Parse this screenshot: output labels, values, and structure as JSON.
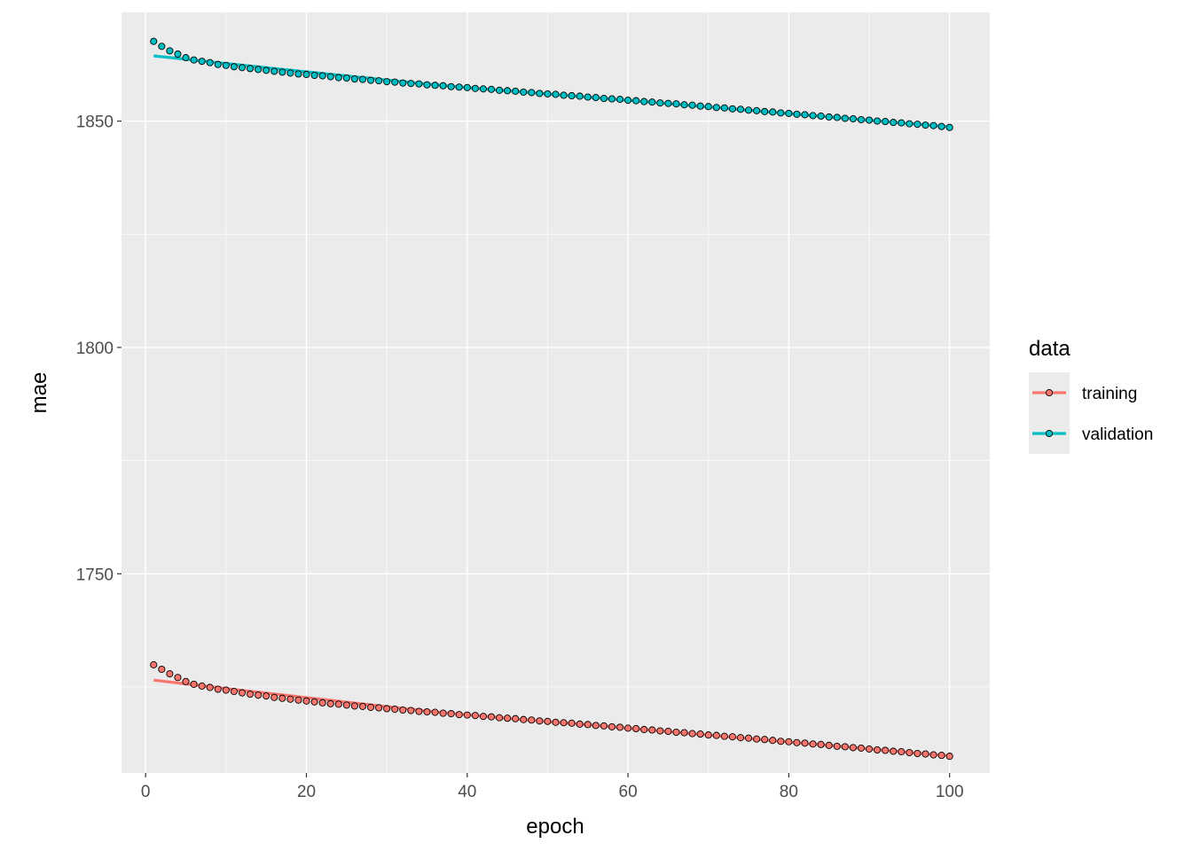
{
  "chart_data": {
    "type": "line",
    "title": "",
    "xlabel": "epoch",
    "ylabel": "mae",
    "xlim": [
      -3,
      105
    ],
    "ylim": [
      1706,
      1874
    ],
    "x_ticks": [
      0,
      20,
      40,
      60,
      80,
      100
    ],
    "y_ticks": [
      1750,
      1800,
      1850
    ],
    "grid": true,
    "legend": {
      "title": "data",
      "position": "right"
    },
    "x": [
      1,
      2,
      3,
      4,
      5,
      6,
      7,
      8,
      9,
      10,
      11,
      12,
      13,
      14,
      15,
      16,
      17,
      18,
      19,
      20,
      21,
      22,
      23,
      24,
      25,
      26,
      27,
      28,
      29,
      30,
      31,
      32,
      33,
      34,
      35,
      36,
      37,
      38,
      39,
      40,
      41,
      42,
      43,
      44,
      45,
      46,
      47,
      48,
      49,
      50,
      51,
      52,
      53,
      54,
      55,
      56,
      57,
      58,
      59,
      60,
      61,
      62,
      63,
      64,
      65,
      66,
      67,
      68,
      69,
      70,
      71,
      72,
      73,
      74,
      75,
      76,
      77,
      78,
      79,
      80,
      81,
      82,
      83,
      84,
      85,
      86,
      87,
      88,
      89,
      90,
      91,
      92,
      93,
      94,
      95,
      96,
      97,
      98,
      99,
      100
    ],
    "series": [
      {
        "name": "training",
        "color": "#F8766D",
        "values": [
          1729.9,
          1728.9,
          1727.9,
          1727.1,
          1726.2,
          1725.6,
          1725.2,
          1724.9,
          1724.5,
          1724.3,
          1724.0,
          1723.7,
          1723.4,
          1723.2,
          1723.0,
          1722.7,
          1722.5,
          1722.3,
          1722.1,
          1721.9,
          1721.7,
          1721.5,
          1721.3,
          1721.2,
          1721.0,
          1720.8,
          1720.7,
          1720.5,
          1720.4,
          1720.2,
          1720.1,
          1719.9,
          1719.8,
          1719.6,
          1719.5,
          1719.4,
          1719.2,
          1719.1,
          1718.9,
          1718.8,
          1718.7,
          1718.5,
          1718.4,
          1718.2,
          1718.1,
          1718.0,
          1717.8,
          1717.7,
          1717.5,
          1717.4,
          1717.2,
          1717.1,
          1717.0,
          1716.8,
          1716.7,
          1716.5,
          1716.4,
          1716.2,
          1716.1,
          1715.9,
          1715.8,
          1715.6,
          1715.5,
          1715.3,
          1715.2,
          1715.0,
          1714.9,
          1714.7,
          1714.6,
          1714.4,
          1714.3,
          1714.1,
          1714.0,
          1713.8,
          1713.7,
          1713.5,
          1713.4,
          1713.2,
          1713.0,
          1712.9,
          1712.7,
          1712.6,
          1712.4,
          1712.3,
          1712.1,
          1711.9,
          1711.8,
          1711.6,
          1711.5,
          1711.3,
          1711.1,
          1711.0,
          1710.8,
          1710.7,
          1710.5,
          1710.3,
          1710.2,
          1710.0,
          1709.9,
          1709.7
        ]
      },
      {
        "name": "validation",
        "color": "#00BFC4",
        "values": [
          1867.6,
          1866.5,
          1865.5,
          1864.8,
          1864.0,
          1863.5,
          1863.2,
          1862.9,
          1862.5,
          1862.3,
          1862.0,
          1861.8,
          1861.6,
          1861.4,
          1861.2,
          1861.0,
          1860.8,
          1860.6,
          1860.4,
          1860.3,
          1860.1,
          1860.0,
          1859.8,
          1859.6,
          1859.5,
          1859.3,
          1859.2,
          1859.0,
          1858.9,
          1858.7,
          1858.6,
          1858.4,
          1858.3,
          1858.2,
          1858.0,
          1857.9,
          1857.8,
          1857.6,
          1857.5,
          1857.4,
          1857.2,
          1857.1,
          1857.0,
          1856.8,
          1856.7,
          1856.6,
          1856.4,
          1856.3,
          1856.1,
          1856.0,
          1855.9,
          1855.7,
          1855.6,
          1855.5,
          1855.3,
          1855.2,
          1855.0,
          1854.9,
          1854.8,
          1854.6,
          1854.5,
          1854.3,
          1854.2,
          1854.0,
          1853.9,
          1853.8,
          1853.6,
          1853.5,
          1853.3,
          1853.2,
          1853.0,
          1852.9,
          1852.7,
          1852.6,
          1852.4,
          1852.3,
          1852.1,
          1852.0,
          1851.8,
          1851.7,
          1851.5,
          1851.4,
          1851.2,
          1851.1,
          1850.9,
          1850.8,
          1850.6,
          1850.5,
          1850.3,
          1850.2,
          1850.0,
          1849.9,
          1849.7,
          1849.6,
          1849.4,
          1849.3,
          1849.1,
          1849.0,
          1848.8,
          1848.6
        ]
      }
    ]
  }
}
